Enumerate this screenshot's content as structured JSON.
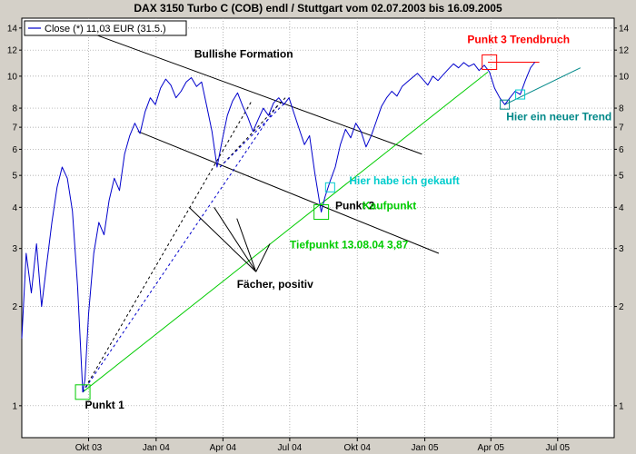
{
  "chart_data": {
    "type": "line",
    "title": "DAX 3150 Turbo C (COB)  endl / Stuttgart vom 02.07.2003 bis 16.09.2005",
    "legend": {
      "label": "Close (*) 11,03 EUR (31.5.)",
      "placement": "top-left"
    },
    "y_scale": "log",
    "ylim": [
      0.8,
      15
    ],
    "y_ticks": [
      1,
      2,
      3,
      4,
      5,
      6,
      7,
      8,
      10,
      12,
      14
    ],
    "xlim": [
      "2003-07-02",
      "2005-09-16"
    ],
    "x_ticks": [
      {
        "label": "Okt 03",
        "date": "2003-10-01"
      },
      {
        "label": "Jan 04",
        "date": "2004-01-01"
      },
      {
        "label": "Apr 04",
        "date": "2004-04-01"
      },
      {
        "label": "Jul 04",
        "date": "2004-07-01"
      },
      {
        "label": "Okt 04",
        "date": "2004-10-01"
      },
      {
        "label": "Jan 05",
        "date": "2005-01-01"
      },
      {
        "label": "Apr 05",
        "date": "2005-04-01"
      },
      {
        "label": "Jul 05",
        "date": "2005-07-01"
      }
    ],
    "grid": true,
    "series": [
      {
        "name": "Close (*) 11,03 EUR (31.5.)",
        "color": "#0000cc",
        "points": [
          [
            "2003-07-02",
            1.6
          ],
          [
            "2003-07-08",
            2.9
          ],
          [
            "2003-07-15",
            2.2
          ],
          [
            "2003-07-22",
            3.1
          ],
          [
            "2003-07-29",
            2.0
          ],
          [
            "2003-08-05",
            2.7
          ],
          [
            "2003-08-12",
            3.6
          ],
          [
            "2003-08-19",
            4.6
          ],
          [
            "2003-08-26",
            5.3
          ],
          [
            "2003-09-02",
            4.9
          ],
          [
            "2003-09-09",
            3.9
          ],
          [
            "2003-09-16",
            2.3
          ],
          [
            "2003-09-23",
            1.1
          ],
          [
            "2003-09-26",
            1.2
          ],
          [
            "2003-10-01",
            1.9
          ],
          [
            "2003-10-08",
            2.9
          ],
          [
            "2003-10-15",
            3.6
          ],
          [
            "2003-10-22",
            3.3
          ],
          [
            "2003-10-29",
            4.2
          ],
          [
            "2003-11-05",
            4.9
          ],
          [
            "2003-11-12",
            4.5
          ],
          [
            "2003-11-19",
            5.8
          ],
          [
            "2003-11-26",
            6.6
          ],
          [
            "2003-12-03",
            7.2
          ],
          [
            "2003-12-10",
            6.7
          ],
          [
            "2003-12-17",
            7.8
          ],
          [
            "2003-12-24",
            8.6
          ],
          [
            "2003-12-31",
            8.2
          ],
          [
            "2004-01-07",
            9.2
          ],
          [
            "2004-01-14",
            9.8
          ],
          [
            "2004-01-21",
            9.4
          ],
          [
            "2004-01-28",
            8.6
          ],
          [
            "2004-02-04",
            9.0
          ],
          [
            "2004-02-11",
            9.6
          ],
          [
            "2004-02-18",
            9.9
          ],
          [
            "2004-02-25",
            9.3
          ],
          [
            "2004-03-03",
            9.6
          ],
          [
            "2004-03-10",
            8.1
          ],
          [
            "2004-03-17",
            6.8
          ],
          [
            "2004-03-24",
            5.3
          ],
          [
            "2004-03-31",
            6.4
          ],
          [
            "2004-04-07",
            7.6
          ],
          [
            "2004-04-14",
            8.4
          ],
          [
            "2004-04-21",
            8.9
          ],
          [
            "2004-04-28",
            8.1
          ],
          [
            "2004-05-05",
            7.5
          ],
          [
            "2004-05-12",
            6.8
          ],
          [
            "2004-05-19",
            7.4
          ],
          [
            "2004-05-26",
            8.0
          ],
          [
            "2004-06-02",
            7.6
          ],
          [
            "2004-06-09",
            8.3
          ],
          [
            "2004-06-16",
            8.6
          ],
          [
            "2004-06-23",
            8.2
          ],
          [
            "2004-06-30",
            8.6
          ],
          [
            "2004-07-07",
            7.7
          ],
          [
            "2004-07-14",
            6.9
          ],
          [
            "2004-07-21",
            6.2
          ],
          [
            "2004-07-28",
            6.6
          ],
          [
            "2004-08-04",
            5.1
          ],
          [
            "2004-08-11",
            4.1
          ],
          [
            "2004-08-13",
            3.87
          ],
          [
            "2004-08-18",
            4.3
          ],
          [
            "2004-08-25",
            4.8
          ],
          [
            "2004-09-01",
            5.3
          ],
          [
            "2004-09-08",
            6.2
          ],
          [
            "2004-09-15",
            6.9
          ],
          [
            "2004-09-22",
            6.5
          ],
          [
            "2004-09-29",
            7.2
          ],
          [
            "2004-10-06",
            6.8
          ],
          [
            "2004-10-13",
            6.1
          ],
          [
            "2004-10-20",
            6.6
          ],
          [
            "2004-10-27",
            7.3
          ],
          [
            "2004-11-03",
            8.1
          ],
          [
            "2004-11-10",
            8.6
          ],
          [
            "2004-11-17",
            9.0
          ],
          [
            "2004-11-24",
            8.7
          ],
          [
            "2004-12-01",
            9.3
          ],
          [
            "2004-12-08",
            9.6
          ],
          [
            "2004-12-15",
            9.9
          ],
          [
            "2004-12-22",
            10.2
          ],
          [
            "2004-12-29",
            9.8
          ],
          [
            "2005-01-05",
            9.4
          ],
          [
            "2005-01-12",
            10.0
          ],
          [
            "2005-01-19",
            9.7
          ],
          [
            "2005-01-26",
            10.1
          ],
          [
            "2005-02-02",
            10.5
          ],
          [
            "2005-02-09",
            10.9
          ],
          [
            "2005-02-16",
            10.6
          ],
          [
            "2005-02-23",
            11.0
          ],
          [
            "2005-03-02",
            10.7
          ],
          [
            "2005-03-09",
            10.9
          ],
          [
            "2005-03-16",
            10.4
          ],
          [
            "2005-03-23",
            10.8
          ],
          [
            "2005-03-30",
            10.3
          ],
          [
            "2005-04-06",
            9.2
          ],
          [
            "2005-04-13",
            8.6
          ],
          [
            "2005-04-20",
            8.2
          ],
          [
            "2005-04-27",
            8.6
          ],
          [
            "2005-05-04",
            9.0
          ],
          [
            "2005-05-11",
            8.8
          ],
          [
            "2005-05-18",
            9.7
          ],
          [
            "2005-05-25",
            10.6
          ],
          [
            "2005-05-31",
            11.03
          ]
        ]
      }
    ],
    "overlay_lines": [
      {
        "color": "#000000",
        "style": "solid",
        "from": [
          "2003-10-01",
          13.6
        ],
        "to": [
          "2004-12-28",
          5.8
        ]
      },
      {
        "color": "#000000",
        "style": "solid",
        "from": [
          "2003-12-07",
          6.8
        ],
        "to": [
          "2005-01-20",
          2.9
        ]
      },
      {
        "color": "#00cc00",
        "style": "solid",
        "from": [
          "2003-09-23",
          1.1
        ],
        "to": [
          "2005-03-28",
          10.3
        ]
      },
      {
        "color": "#ff0000",
        "style": "solid",
        "from": [
          "2005-03-28",
          11.03
        ],
        "to": [
          "2005-06-06",
          11.03
        ]
      },
      {
        "color": "#008888",
        "style": "solid",
        "from": [
          "2005-04-20",
          8.2
        ],
        "to": [
          "2005-08-01",
          10.6
        ]
      },
      {
        "color": "#000000",
        "style": "dashed",
        "from": [
          "2003-09-23",
          1.1
        ],
        "to": [
          "2004-05-10",
          8.4
        ]
      },
      {
        "color": "#0000cc",
        "style": "dashed",
        "from": [
          "2003-09-23",
          1.1
        ],
        "to": [
          "2004-06-15",
          8.2
        ]
      },
      {
        "color": "#000000",
        "style": "dashed",
        "from": [
          "2004-03-28",
          5.3
        ],
        "to": [
          "2004-06-25",
          8.6
        ]
      },
      {
        "color": "#0000cc",
        "style": "dashed",
        "from": [
          "2004-03-28",
          5.3
        ],
        "to": [
          "2004-06-22",
          8.2
        ]
      }
    ],
    "fan_pointer_lines": [
      {
        "from": [
          "2004-02-15",
          4.0
        ],
        "to": [
          "2004-05-16",
          2.55
        ]
      },
      {
        "from": [
          "2004-03-20",
          4.0
        ],
        "to": [
          "2004-05-16",
          2.55
        ]
      },
      {
        "from": [
          "2004-04-20",
          3.7
        ],
        "to": [
          "2004-05-16",
          2.55
        ]
      },
      {
        "from": [
          "2004-06-04",
          3.1
        ],
        "to": [
          "2004-05-16",
          2.55
        ]
      }
    ],
    "markers": [
      {
        "color": "#00cc00",
        "center": [
          "2003-09-23",
          1.1
        ],
        "size": "large"
      },
      {
        "color": "#00cc00",
        "center": [
          "2004-08-13",
          3.87
        ],
        "size": "large"
      },
      {
        "color": "#00cccc",
        "center": [
          "2004-08-25",
          4.6
        ],
        "size": "small"
      },
      {
        "color": "#ff0000",
        "center": [
          "2005-03-30",
          11.03
        ],
        "size": "large"
      },
      {
        "color": "#008888",
        "center": [
          "2005-04-20",
          8.2
        ],
        "size": "small"
      },
      {
        "color": "#00cccc",
        "center": [
          "2005-05-11",
          8.8
        ],
        "size": "small"
      }
    ],
    "annotations": [
      {
        "text": "Punkt 1",
        "color": "#000000",
        "anchor": [
          "2003-09-26",
          0.98
        ]
      },
      {
        "text": "Bullishe Formation",
        "color": "#000000",
        "anchor": [
          "2004-02-22",
          11.4
        ]
      },
      {
        "text": "Punkt 2",
        "color": "#000000",
        "anchor": [
          "2004-09-01",
          3.95
        ]
      },
      {
        "text": "Kaufpunkt",
        "color": "#00cc00",
        "anchor": [
          "2004-10-08",
          3.95
        ]
      },
      {
        "text": "Tiefpunkt 13.08.04 3,87",
        "color": "#00cc00",
        "anchor": [
          "2004-07-01",
          3.0
        ]
      },
      {
        "text": "Hier habe ich gekauft",
        "color": "#00cccc",
        "anchor": [
          "2004-09-20",
          4.7
        ]
      },
      {
        "text": "Fächer, positiv",
        "color": "#000000",
        "anchor": [
          "2004-04-20",
          2.28
        ]
      },
      {
        "text": "Punkt 3 Trendbruch",
        "color": "#ff0000",
        "anchor": [
          "2005-02-28",
          12.6
        ]
      },
      {
        "text": "Hier ein neuer Trend",
        "color": "#008888",
        "anchor": [
          "2005-04-22",
          7.35
        ]
      }
    ]
  }
}
